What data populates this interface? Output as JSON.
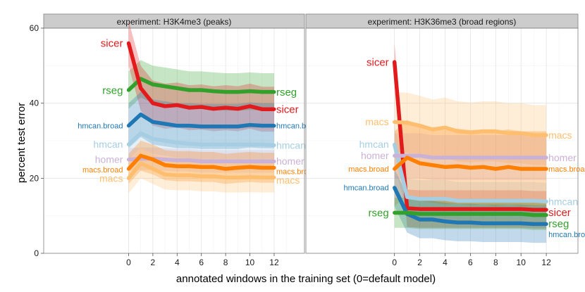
{
  "chart_data": {
    "type": "line",
    "xlabel": "annotated windows in the training set (0=default model)",
    "ylabel": "percent test error",
    "xlim": [
      -7,
      14.5
    ],
    "ylim": [
      0,
      60
    ],
    "x_ticks": [
      0,
      2,
      4,
      6,
      8,
      10,
      12
    ],
    "y_ticks": [
      0,
      20,
      40,
      60
    ],
    "grid": true,
    "x": [
      0,
      1,
      2,
      3,
      4,
      5,
      6,
      7,
      8,
      9,
      10,
      11,
      12
    ],
    "colors": {
      "sicer": "#e31a1c",
      "rseg": "#33a02c",
      "hmcan.broad": "#1f78b4",
      "hmcan": "#a6cee3",
      "homer": "#cab2d6",
      "macs.broad": "#ff7f00",
      "macs": "#fdbf6f"
    },
    "panels": [
      {
        "title": "experiment: H3K4me3 (peaks)",
        "series": [
          {
            "name": "rseg",
            "values": [
              43.5,
              46.5,
              45,
              44.5,
              44,
              43.5,
              43.5,
              43.2,
              43,
              43,
              43.2,
              43,
              43
            ],
            "band": 5,
            "label_left": "rseg",
            "label_right": "rseg"
          },
          {
            "name": "sicer",
            "values": [
              56,
              44,
              40,
              39.2,
              39.5,
              38.8,
              39,
              38.5,
              38.8,
              38.5,
              39.2,
              38.4,
              38.4
            ],
            "band": 6,
            "label_left": "sicer",
            "label_right": "sicer"
          },
          {
            "name": "hmcan.broad",
            "values": [
              34,
              37,
              35,
              34.5,
              34,
              34,
              33.8,
              33.8,
              33.8,
              33.8,
              34.2,
              34,
              34
            ],
            "band": 6,
            "label_left": "hmcan.broad",
            "label_right": "hmcan.broad"
          },
          {
            "name": "hmcan",
            "values": [
              29,
              32,
              30.5,
              30,
              29.5,
              29.2,
              29,
              29,
              29,
              29,
              29,
              29,
              28.8
            ],
            "band": 4,
            "label_left": "hmcan",
            "label_right": "hmcan"
          },
          {
            "name": "homer",
            "values": [
              25,
              25.2,
              25.2,
              25,
              24.8,
              24.8,
              24.5,
              24.5,
              24.5,
              24.5,
              24.5,
              24.5,
              24.5
            ],
            "band": 3,
            "label_left": "homer",
            "label_right": "homer"
          },
          {
            "name": "macs.broad",
            "values": [
              22.5,
              26,
              25,
              23.5,
              23.2,
              23.2,
              23,
              23,
              22.5,
              22.8,
              23,
              22.8,
              22.8
            ],
            "band": 4,
            "label_left": "macs.broad",
            "label_right": "macs.broad"
          },
          {
            "name": "macs",
            "values": [
              20,
              24,
              22.5,
              21,
              20.8,
              20.8,
              20.5,
              20.5,
              20.2,
              20.2,
              20.3,
              20.2,
              20.2
            ],
            "band": 4,
            "label_left": "macs",
            "label_right": "macs"
          }
        ]
      },
      {
        "title": "experiment: H3K36me3 (broad regions)",
        "series": [
          {
            "name": "sicer",
            "values": [
              51,
              12,
              11.8,
              11.8,
              11.8,
              11.8,
              11.8,
              11.8,
              11.8,
              11.8,
              11.8,
              11.6,
              11.6
            ],
            "band": 5,
            "label_left": "sicer",
            "label_right": "sicer"
          },
          {
            "name": "macs",
            "values": [
              35,
              34.8,
              34,
              33,
              33.5,
              32.5,
              32.2,
              32.5,
              32.5,
              32,
              32,
              31.5,
              31.5
            ],
            "band": 8,
            "label_left": "macs",
            "label_right": "macs"
          },
          {
            "name": "hmcan",
            "values": [
              29,
              15,
              14.5,
              14.5,
              14.5,
              14,
              14,
              14,
              14,
              14,
              14,
              14,
              13.8
            ],
            "band": 5,
            "label_left": "hmcan",
            "label_right": "hmcan"
          },
          {
            "name": "homer",
            "values": [
              26,
              26,
              26,
              25.5,
              25.5,
              25.5,
              25.5,
              25.5,
              25.5,
              25.5,
              25.5,
              25.5,
              25.5
            ],
            "band": 6,
            "label_left": "homer",
            "label_right": "homer"
          },
          {
            "name": "macs.broad",
            "values": [
              22.5,
              25.5,
              24,
              23.5,
              23,
              23.2,
              22.8,
              23,
              22.5,
              23,
              22.5,
              22.5,
              22.5
            ],
            "band": 10,
            "label_left": "macs.broad",
            "label_right": "macs.broad"
          },
          {
            "name": "hmcan.broad",
            "values": [
              17.5,
              10.5,
              9,
              9,
              8.5,
              8.2,
              8.2,
              8,
              8,
              8,
              8,
              7.8,
              7.8
            ],
            "band": 5,
            "label_left": "hmcan.broad",
            "label_right": "hmcan.broad"
          },
          {
            "name": "rseg",
            "values": [
              10.8,
              10.8,
              10.5,
              10.5,
              10.5,
              10.5,
              10.5,
              10.5,
              10.5,
              10.5,
              10.5,
              10.2,
              10.2
            ],
            "band": 4,
            "label_left": "rseg",
            "label_right": "rseg"
          }
        ]
      }
    ]
  }
}
